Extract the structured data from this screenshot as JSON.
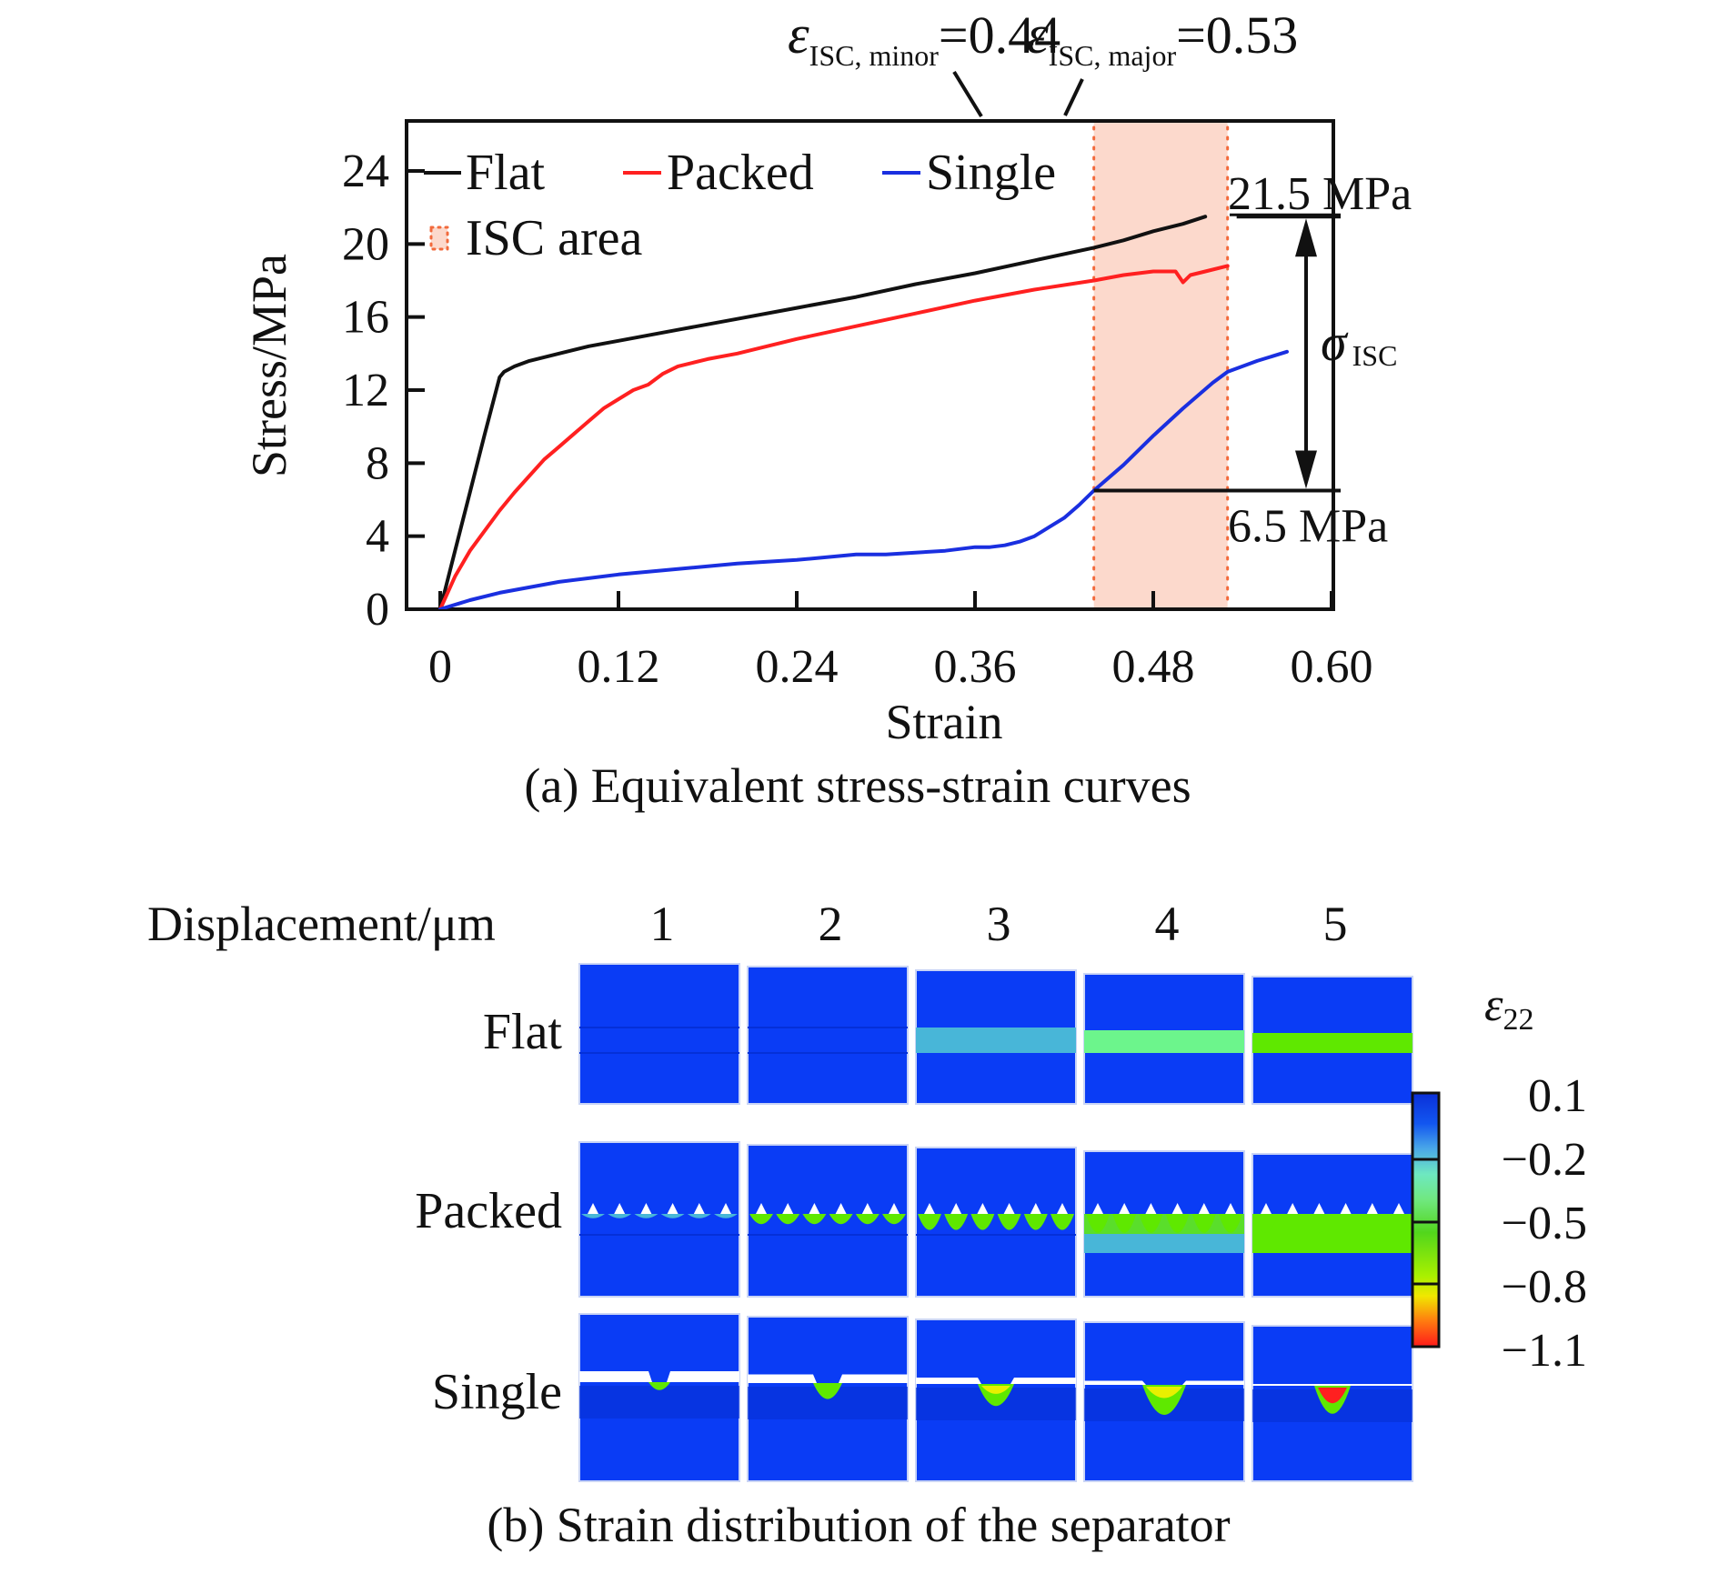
{
  "chart_data": [
    {
      "type": "line",
      "panel": "a",
      "title": "(a) Equivalent stress-strain curves",
      "xlabel": "Strain",
      "ylabel": "Stress/MPa",
      "xlim": [
        0,
        0.69
      ],
      "ylim": [
        0,
        27
      ],
      "xticks": [
        0,
        0.12,
        0.24,
        0.36,
        0.48,
        0.6
      ],
      "xtick_labels": [
        "0",
        "0.12",
        "0.24",
        "0.36",
        "0.48",
        "0.60"
      ],
      "yticks": [
        0,
        4,
        8,
        12,
        16,
        20,
        24
      ],
      "ytick_labels": [
        "0",
        "4",
        "8",
        "12",
        "16",
        "20",
        "24"
      ],
      "grid": false,
      "legend_position": "top-left",
      "series": [
        {
          "name": "Flat",
          "color": "#111111",
          "x": [
            0,
            0.01,
            0.02,
            0.03,
            0.04,
            0.043,
            0.05,
            0.06,
            0.08,
            0.1,
            0.12,
            0.16,
            0.2,
            0.24,
            0.28,
            0.32,
            0.36,
            0.4,
            0.44,
            0.46,
            0.48,
            0.5,
            0.515
          ],
          "y": [
            0,
            3.2,
            6.4,
            9.6,
            12.7,
            13.0,
            13.3,
            13.6,
            14.0,
            14.4,
            14.7,
            15.3,
            15.9,
            16.5,
            17.1,
            17.8,
            18.4,
            19.1,
            19.8,
            20.2,
            20.7,
            21.1,
            21.5
          ]
        },
        {
          "name": "Packed",
          "color": "#ff2020",
          "x": [
            0,
            0.01,
            0.02,
            0.03,
            0.04,
            0.05,
            0.06,
            0.07,
            0.08,
            0.09,
            0.1,
            0.11,
            0.12,
            0.13,
            0.14,
            0.15,
            0.16,
            0.17,
            0.18,
            0.2,
            0.24,
            0.28,
            0.32,
            0.36,
            0.4,
            0.44,
            0.46,
            0.48,
            0.495,
            0.5,
            0.505,
            0.515,
            0.53
          ],
          "y": [
            0,
            1.8,
            3.2,
            4.3,
            5.4,
            6.4,
            7.3,
            8.2,
            8.9,
            9.6,
            10.3,
            11.0,
            11.5,
            12.0,
            12.3,
            12.9,
            13.3,
            13.5,
            13.7,
            14.0,
            14.8,
            15.5,
            16.2,
            16.9,
            17.5,
            18.0,
            18.3,
            18.5,
            18.5,
            17.9,
            18.3,
            18.5,
            18.8
          ]
        },
        {
          "name": "Single",
          "color": "#1a2fe0",
          "x": [
            0,
            0.02,
            0.04,
            0.06,
            0.08,
            0.1,
            0.12,
            0.16,
            0.2,
            0.24,
            0.28,
            0.3,
            0.32,
            0.34,
            0.36,
            0.37,
            0.38,
            0.39,
            0.4,
            0.41,
            0.42,
            0.43,
            0.44,
            0.46,
            0.48,
            0.5,
            0.52,
            0.53,
            0.55,
            0.57
          ],
          "y": [
            0,
            0.5,
            0.9,
            1.2,
            1.5,
            1.7,
            1.9,
            2.2,
            2.5,
            2.7,
            3.0,
            3.0,
            3.1,
            3.2,
            3.4,
            3.4,
            3.5,
            3.7,
            4.0,
            4.5,
            5.0,
            5.7,
            6.5,
            7.9,
            9.5,
            11.0,
            12.4,
            13.0,
            13.6,
            14.1
          ]
        }
      ],
      "isc_area": {
        "legend_label": "ISC area",
        "x_start": 0.44,
        "x_end": 0.53,
        "fill_color": "#fcd9cc",
        "edge_color": "#f26a3c"
      },
      "annotations": {
        "eps_minor": {
          "symbol": "ε",
          "subscript": "ISC, minor",
          "value_text": "=0.44",
          "x": 0.44
        },
        "eps_major": {
          "symbol": "ε",
          "subscript": "ISC, major",
          "value_text": "=0.53",
          "x": 0.53
        },
        "upper_stress": {
          "text": "21.5 MPa",
          "value": 21.5
        },
        "lower_stress": {
          "text": "6.5 MPa",
          "value": 6.5
        },
        "sigma": {
          "symbol": "σ",
          "subscript": "ISC"
        }
      }
    },
    {
      "type": "heatmap",
      "panel": "b",
      "title": "(b) Strain distribution of the separator",
      "column_header": "Displacement/μm",
      "columns": [
        "1",
        "2",
        "3",
        "4",
        "5"
      ],
      "rows": [
        "Flat",
        "Packed",
        "Single"
      ],
      "colorbar": {
        "title_symbol": "ε",
        "title_subscript": "22",
        "ticks": [
          "0.1",
          "−0.2",
          "−0.5",
          "−0.8",
          "−1.1"
        ],
        "values": [
          0.1,
          -0.2,
          -0.5,
          -0.8,
          -1.1
        ]
      },
      "band_state": {
        "Flat": [
          "none",
          "none",
          "cyan",
          "light-green",
          "green"
        ],
        "Packed": [
          "tips-light",
          "tips-green",
          "tips-green-deep",
          "band-cyan",
          "band-green"
        ],
        "Single": [
          "small",
          "medium",
          "medium-large",
          "large",
          "red-tip"
        ]
      }
    }
  ],
  "colors": {
    "contour_base": "#0a3cf5",
    "contour_dark": "#0530d8",
    "cyan": "#48b6d8",
    "light_green": "#6cf58c",
    "green": "#5fe800",
    "yellow": "#e8f000",
    "red": "#ff2020"
  }
}
